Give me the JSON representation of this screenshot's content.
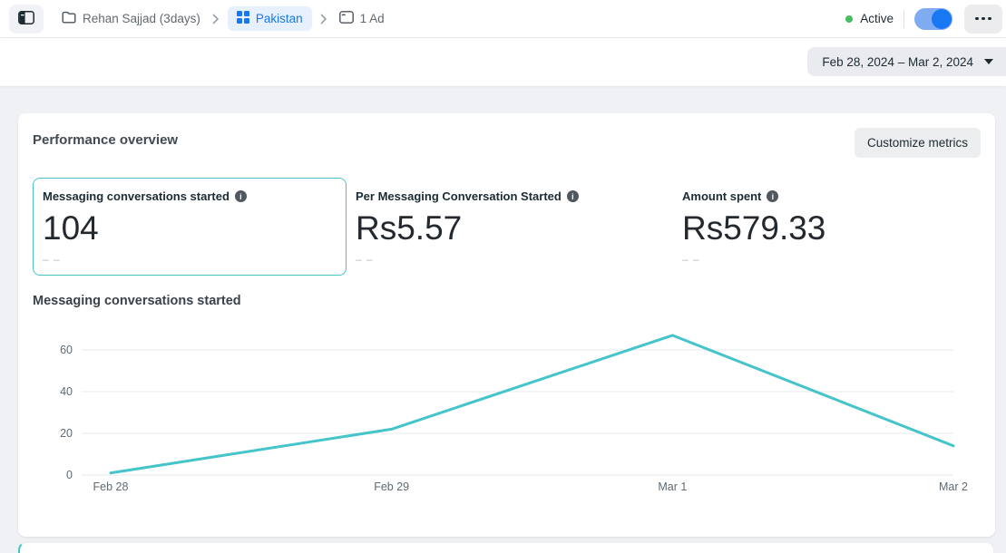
{
  "colors": {
    "accent_teal": "#45c4c9",
    "brand_blue": "#1877f2",
    "status_green": "#45bd62"
  },
  "topbar": {
    "breadcrumb": {
      "items": [
        {
          "label": "Rehan Sajjad (3days)"
        },
        {
          "label": "Pakistan"
        },
        {
          "label": "1 Ad"
        }
      ]
    },
    "status_label": "Active",
    "toggle_state": "on"
  },
  "toolbar": {
    "date_range": "Feb 28, 2024 – Mar 2, 2024"
  },
  "overview": {
    "title": "Performance overview",
    "customize_button_label": "Customize metrics",
    "metrics": [
      {
        "label": "Messaging conversations started",
        "value": "104",
        "comparison": "– –",
        "selected": true
      },
      {
        "label": "Per Messaging Conversation Started",
        "value": "Rs5.57",
        "comparison": "– –",
        "selected": false
      },
      {
        "label": "Amount spent",
        "value": "Rs579.33",
        "comparison": "– –",
        "selected": false
      }
    ],
    "info_glyph": "i"
  },
  "chart_data": {
    "type": "line",
    "title": "Messaging conversations started",
    "categories": [
      "Feb 28",
      "Feb 29",
      "Mar 1",
      "Mar 2"
    ],
    "values": [
      1,
      22,
      67,
      14
    ],
    "series": [
      {
        "name": "Messaging conversations started",
        "values": [
          1,
          22,
          67,
          14
        ]
      }
    ],
    "yticks": [
      0,
      20,
      40,
      60
    ],
    "ylim": [
      0,
      70
    ],
    "xlabel": "",
    "ylabel": "",
    "grid": true,
    "legend": false,
    "line_color": "#45c4c9"
  },
  "icons": {
    "sidebar_toggle": "sidebar-panel-icon",
    "breadcrumb_folder": "folder-icon",
    "breadcrumb_grid": "grid-icon",
    "breadcrumb_ad": "ad-frame-icon",
    "separator": "chevron-right-icon",
    "info": "info-icon",
    "date_caret": "caret-down-icon",
    "more": "ellipsis-icon"
  }
}
